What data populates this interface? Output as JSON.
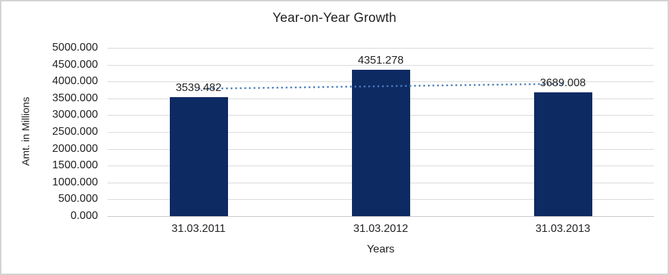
{
  "chart_data": {
    "type": "bar",
    "title": "Year-on-Year Growth",
    "xlabel": "Years",
    "ylabel": "Amt. in Millions",
    "categories": [
      "31.03.2011",
      "31.03.2012",
      "31.03.2013"
    ],
    "values": [
      3539.482,
      4351.278,
      3689.008
    ],
    "data_labels": [
      "3539.482",
      "4351.278",
      "3689.008"
    ],
    "ylim": [
      0,
      5000
    ],
    "ytick_step": 500,
    "ytick_labels": [
      "0.000",
      "500.000",
      "1000.000",
      "1500.000",
      "2000.000",
      "2500.000",
      "3000.000",
      "3500.000",
      "4000.000",
      "4500.000",
      "5000.000"
    ],
    "grid": true,
    "legend_position": "none",
    "trendline": {
      "style": "dotted",
      "endpoint_values": [
        3785.2,
        3934.7
      ]
    },
    "colors": {
      "bar_fill": "#0e2a63",
      "trendline": "#4a7ebb",
      "gridline": "#d9d9d9",
      "axis_line": "#c6c6c6",
      "text": "#1f1f1f",
      "frame_border": "#d2d2d2",
      "background": "#ffffff"
    }
  }
}
